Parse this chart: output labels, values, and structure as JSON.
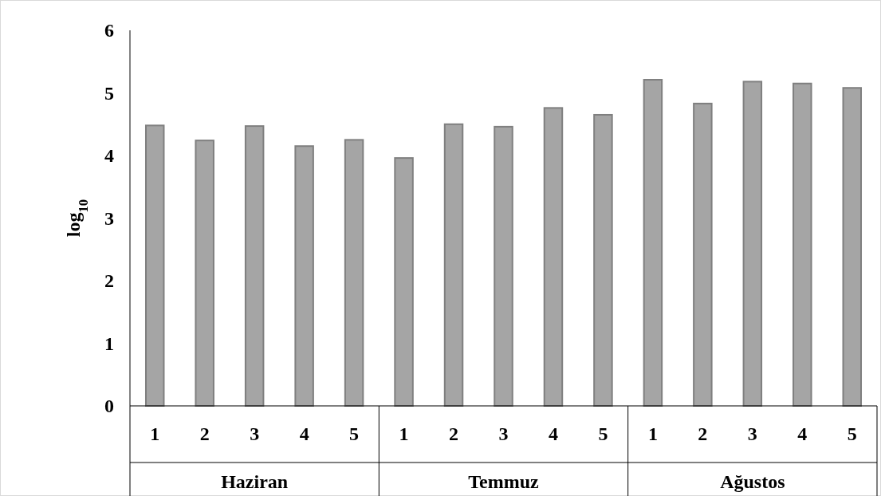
{
  "chart_data": {
    "type": "bar",
    "ylabel": "log$_{10}$",
    "categories": [
      "1",
      "2",
      "3",
      "4",
      "5",
      "1",
      "2",
      "3",
      "4",
      "5",
      "1",
      "2",
      "3",
      "4",
      "5"
    ],
    "values": [
      4.48,
      4.24,
      4.47,
      4.15,
      4.25,
      3.96,
      4.5,
      4.46,
      4.76,
      4.65,
      5.21,
      4.83,
      5.18,
      5.15,
      5.08
    ],
    "color": "#a5a5a5",
    "ylim": [
      0,
      6
    ],
    "yticks": [
      0,
      1,
      2,
      3,
      4,
      5,
      6
    ],
    "grid": false,
    "annotations": [
      "Haziran",
      "Temmuz",
      "Ağustos"
    ]
  }
}
